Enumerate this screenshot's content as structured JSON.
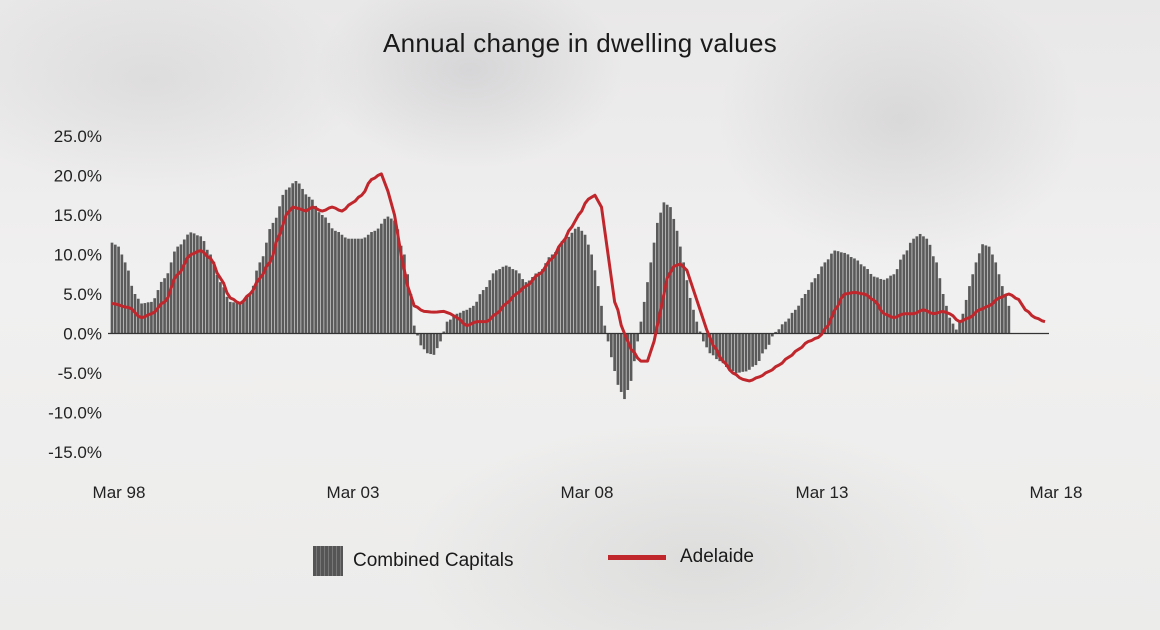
{
  "chart_data": {
    "type": "bar+line",
    "title": "Annual change in dwelling values",
    "ylim": [
      -15,
      25
    ],
    "yticks": [
      25,
      20,
      15,
      10,
      5,
      0,
      -5,
      -10,
      -15
    ],
    "ytick_labels": [
      "25.0%",
      "20.0%",
      "15.0%",
      "10.0%",
      "5.0%",
      "0.0%",
      "-5.0%",
      "-10.0%",
      "-15.0%"
    ],
    "xtick_labels": [
      "Mar 98",
      "Mar 03",
      "Mar 08",
      "Mar 13",
      "Mar 18"
    ],
    "x_start": "Mar 98",
    "x_end": "Mar 18",
    "series": [
      {
        "name": "Combined Capitals",
        "kind": "bar",
        "color": "#5a5a5a",
        "knots": [
          [
            0,
            11.5
          ],
          [
            2,
            11
          ],
          [
            4,
            9
          ],
          [
            7,
            5
          ],
          [
            9,
            3.8
          ],
          [
            12,
            4
          ],
          [
            16,
            7
          ],
          [
            20,
            11
          ],
          [
            24,
            12.8
          ],
          [
            27,
            12.3
          ],
          [
            30,
            10
          ],
          [
            33,
            6.5
          ],
          [
            36,
            4
          ],
          [
            39,
            3.8
          ],
          [
            42,
            5
          ],
          [
            45,
            9
          ],
          [
            49,
            14
          ],
          [
            53,
            18.2
          ],
          [
            56,
            19.3
          ],
          [
            60,
            17.3
          ],
          [
            64,
            15
          ],
          [
            68,
            13
          ],
          [
            72,
            12
          ],
          [
            76,
            12
          ],
          [
            80,
            13
          ],
          [
            84,
            14.8
          ],
          [
            86,
            14.3
          ],
          [
            89,
            10
          ],
          [
            91,
            5
          ],
          [
            92,
            1
          ],
          [
            94,
            -1.5
          ],
          [
            96,
            -2.5
          ],
          [
            98,
            -2.7
          ],
          [
            100,
            -1
          ],
          [
            102,
            1.5
          ],
          [
            105,
            2.5
          ],
          [
            108,
            3
          ],
          [
            110,
            3.5
          ],
          [
            113,
            5.5
          ],
          [
            117,
            8
          ],
          [
            120,
            8.6
          ],
          [
            123,
            8
          ],
          [
            126,
            6.5
          ],
          [
            130,
            7.8
          ],
          [
            134,
            10
          ],
          [
            138,
            12
          ],
          [
            142,
            13.5
          ],
          [
            144,
            12.5
          ],
          [
            146,
            10
          ],
          [
            148,
            6
          ],
          [
            150,
            1
          ],
          [
            152,
            -3
          ],
          [
            154,
            -6.5
          ],
          [
            156,
            -8.3
          ],
          [
            158,
            -6
          ],
          [
            160,
            -1
          ],
          [
            162,
            4
          ],
          [
            164,
            9
          ],
          [
            166,
            14
          ],
          [
            168,
            16.6
          ],
          [
            170,
            16
          ],
          [
            172,
            13
          ],
          [
            174,
            9
          ],
          [
            176,
            4.5
          ],
          [
            178,
            1.5
          ],
          [
            180,
            -1
          ],
          [
            182,
            -2.5
          ],
          [
            185,
            -3.5
          ],
          [
            188,
            -4.5
          ],
          [
            190,
            -5
          ],
          [
            193,
            -4.8
          ],
          [
            196,
            -4
          ],
          [
            199,
            -2
          ],
          [
            202,
            0.2
          ],
          [
            205,
            1.5
          ],
          [
            208,
            3
          ],
          [
            211,
            5
          ],
          [
            214,
            7
          ],
          [
            217,
            9
          ],
          [
            220,
            10.5
          ],
          [
            223,
            10.2
          ],
          [
            226,
            9.5
          ],
          [
            229,
            8.5
          ],
          [
            232,
            7.2
          ],
          [
            235,
            6.8
          ],
          [
            238,
            7.5
          ],
          [
            241,
            10
          ],
          [
            244,
            12
          ],
          [
            246,
            12.6
          ],
          [
            248,
            12
          ],
          [
            251,
            9
          ],
          [
            253,
            5
          ],
          [
            255,
            2
          ],
          [
            257,
            0.5
          ],
          [
            259,
            2.5
          ],
          [
            261,
            6
          ],
          [
            263,
            9
          ],
          [
            265,
            11.3
          ],
          [
            267,
            11
          ],
          [
            269,
            9
          ],
          [
            271,
            6
          ],
          [
            273,
            3.5
          ]
        ]
      },
      {
        "name": "Adelaide",
        "kind": "line",
        "color": "#c0272d",
        "knots": [
          [
            0,
            3.8
          ],
          [
            5,
            3.3
          ],
          [
            9,
            2
          ],
          [
            12,
            2.5
          ],
          [
            16,
            4
          ],
          [
            20,
            7.5
          ],
          [
            24,
            10
          ],
          [
            27,
            10.5
          ],
          [
            30,
            9.5
          ],
          [
            33,
            7
          ],
          [
            36,
            4.5
          ],
          [
            39,
            3.8
          ],
          [
            42,
            5
          ],
          [
            45,
            7
          ],
          [
            48,
            9
          ],
          [
            51,
            12.5
          ],
          [
            53,
            15
          ],
          [
            55,
            16
          ],
          [
            57,
            15.8
          ],
          [
            59,
            15.5
          ],
          [
            61,
            16
          ],
          [
            64,
            15.5
          ],
          [
            67,
            16
          ],
          [
            70,
            15.5
          ],
          [
            73,
            16.5
          ],
          [
            76,
            17.5
          ],
          [
            79,
            19.5
          ],
          [
            82,
            20.2
          ],
          [
            84,
            18
          ],
          [
            86,
            15
          ],
          [
            88,
            10
          ],
          [
            90,
            6
          ],
          [
            92,
            3.5
          ],
          [
            95,
            2.8
          ],
          [
            98,
            2.7
          ],
          [
            101,
            2.8
          ],
          [
            103,
            2.5
          ],
          [
            105,
            2
          ],
          [
            108,
            1
          ],
          [
            111,
            1.5
          ],
          [
            114,
            1.5
          ],
          [
            117,
            2.5
          ],
          [
            120,
            3.8
          ],
          [
            123,
            5
          ],
          [
            126,
            6
          ],
          [
            130,
            7.5
          ],
          [
            134,
            9.5
          ],
          [
            137,
            11.5
          ],
          [
            140,
            13.5
          ],
          [
            142,
            15
          ],
          [
            145,
            17
          ],
          [
            147,
            17.5
          ],
          [
            149,
            16
          ],
          [
            151,
            10
          ],
          [
            153,
            4
          ],
          [
            156,
            0
          ],
          [
            158,
            -2
          ],
          [
            161,
            -3.5
          ],
          [
            163,
            -3.5
          ],
          [
            165,
            -1
          ],
          [
            167,
            3
          ],
          [
            169,
            7
          ],
          [
            171,
            8.5
          ],
          [
            173,
            8.8
          ],
          [
            175,
            8
          ],
          [
            177,
            5.5
          ],
          [
            179,
            3
          ],
          [
            181,
            0.5
          ],
          [
            183,
            -1.5
          ],
          [
            186,
            -3.5
          ],
          [
            189,
            -5
          ],
          [
            192,
            -5.8
          ],
          [
            194,
            -6
          ],
          [
            197,
            -5.5
          ],
          [
            200,
            -4.8
          ],
          [
            203,
            -4
          ],
          [
            206,
            -3
          ],
          [
            209,
            -2
          ],
          [
            212,
            -1
          ],
          [
            215,
            -0.5
          ],
          [
            218,
            1
          ],
          [
            220,
            3
          ],
          [
            223,
            5
          ],
          [
            226,
            5.2
          ],
          [
            229,
            5
          ],
          [
            232,
            4.2
          ],
          [
            235,
            2.5
          ],
          [
            238,
            2
          ],
          [
            241,
            2.5
          ],
          [
            244,
            2.5
          ],
          [
            247,
            3
          ],
          [
            250,
            2.5
          ],
          [
            253,
            2.8
          ],
          [
            255,
            2.5
          ],
          [
            258,
            1.5
          ],
          [
            261,
            2
          ],
          [
            264,
            3
          ],
          [
            267,
            3.5
          ],
          [
            270,
            4.5
          ],
          [
            273,
            5
          ],
          [
            276,
            4.3
          ],
          [
            278,
            3
          ],
          [
            281,
            2
          ],
          [
            284,
            1.5
          ]
        ]
      }
    ],
    "n_periods": 285,
    "legend": {
      "placement": "bottom-center"
    },
    "grid": false
  }
}
